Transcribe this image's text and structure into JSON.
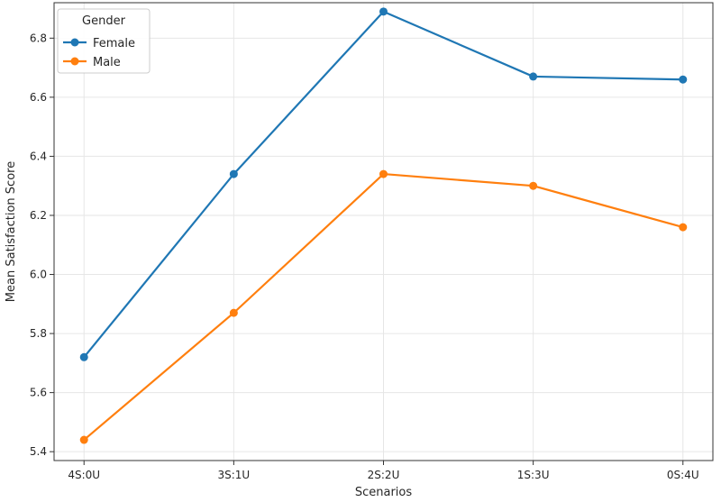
{
  "chart_data": {
    "type": "line",
    "title": "",
    "xlabel": "Scenarios",
    "ylabel": "Mean Satisfaction Score",
    "categories": [
      "4S:0U",
      "3S:1U",
      "2S:2U",
      "1S:3U",
      "0S:4U"
    ],
    "ylim": [
      5.37,
      6.92
    ],
    "yticks": [
      5.4,
      5.6,
      5.8,
      6.0,
      6.2,
      6.4,
      6.6,
      6.8
    ],
    "ytick_labels": [
      "5.4",
      "5.6",
      "5.8",
      "6.0",
      "6.2",
      "6.4",
      "6.6",
      "6.8"
    ],
    "grid": true,
    "legend": {
      "title": "Gender",
      "position": "top-left"
    },
    "series": [
      {
        "name": "Female",
        "color": "#1f77b4",
        "marker": "circle",
        "values": [
          5.72,
          6.34,
          6.89,
          6.67,
          6.66
        ]
      },
      {
        "name": "Male",
        "color": "#ff7f0e",
        "marker": "circle",
        "values": [
          5.44,
          5.87,
          6.34,
          6.3,
          6.16
        ]
      }
    ]
  }
}
